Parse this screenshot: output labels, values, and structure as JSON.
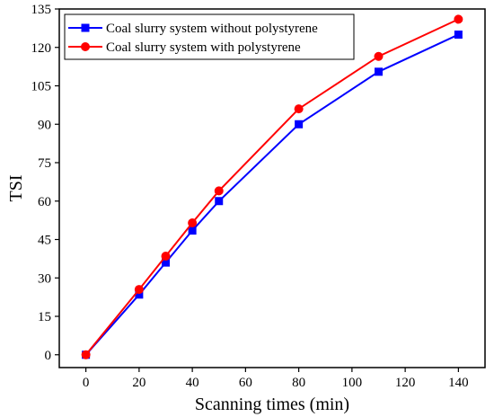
{
  "chart_data": {
    "type": "line",
    "title": "",
    "xlabel": "Scanning times (min)",
    "ylabel": "TSI",
    "xlim": [
      -10,
      150
    ],
    "ylim": [
      -5,
      135
    ],
    "xticks": [
      0,
      20,
      40,
      60,
      80,
      100,
      120,
      140
    ],
    "yticks": [
      0,
      15,
      30,
      45,
      60,
      75,
      90,
      105,
      120,
      135
    ],
    "grid": false,
    "legend_position": "top-left",
    "series": [
      {
        "name": "Coal slurry system without polystyrene",
        "color": "#0000ff",
        "marker": "square",
        "x": [
          0,
          20,
          30,
          40,
          50,
          80,
          110,
          140
        ],
        "y": [
          0,
          23.5,
          36,
          48.5,
          60,
          90,
          110.5,
          125
        ]
      },
      {
        "name": "Coal slurry system with polystyrene",
        "color": "#ff0000",
        "marker": "circle",
        "x": [
          0,
          20,
          30,
          40,
          50,
          80,
          110,
          140
        ],
        "y": [
          0,
          25.5,
          38.5,
          51.5,
          64,
          96,
          116.5,
          131
        ]
      }
    ]
  }
}
